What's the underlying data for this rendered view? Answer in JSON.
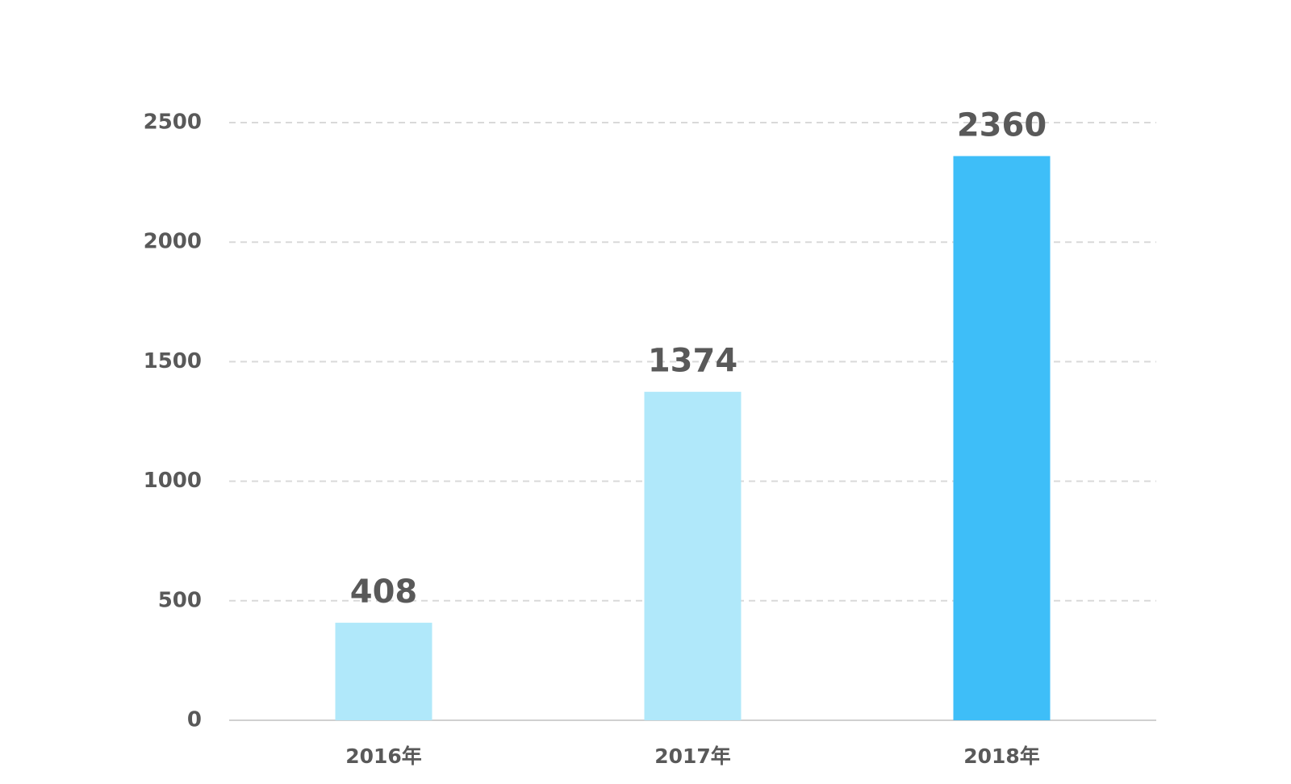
{
  "chart_data": {
    "type": "bar",
    "categories": [
      "2016年",
      "2017年",
      "2018年"
    ],
    "values": [
      408,
      1374,
      2360
    ],
    "colors": [
      "#b0e8fa",
      "#b0e8fa",
      "#3ebef8"
    ],
    "ylim": [
      0,
      2500
    ],
    "yticks": [
      0,
      500,
      1000,
      1500,
      2000,
      2500
    ],
    "grid": true
  }
}
